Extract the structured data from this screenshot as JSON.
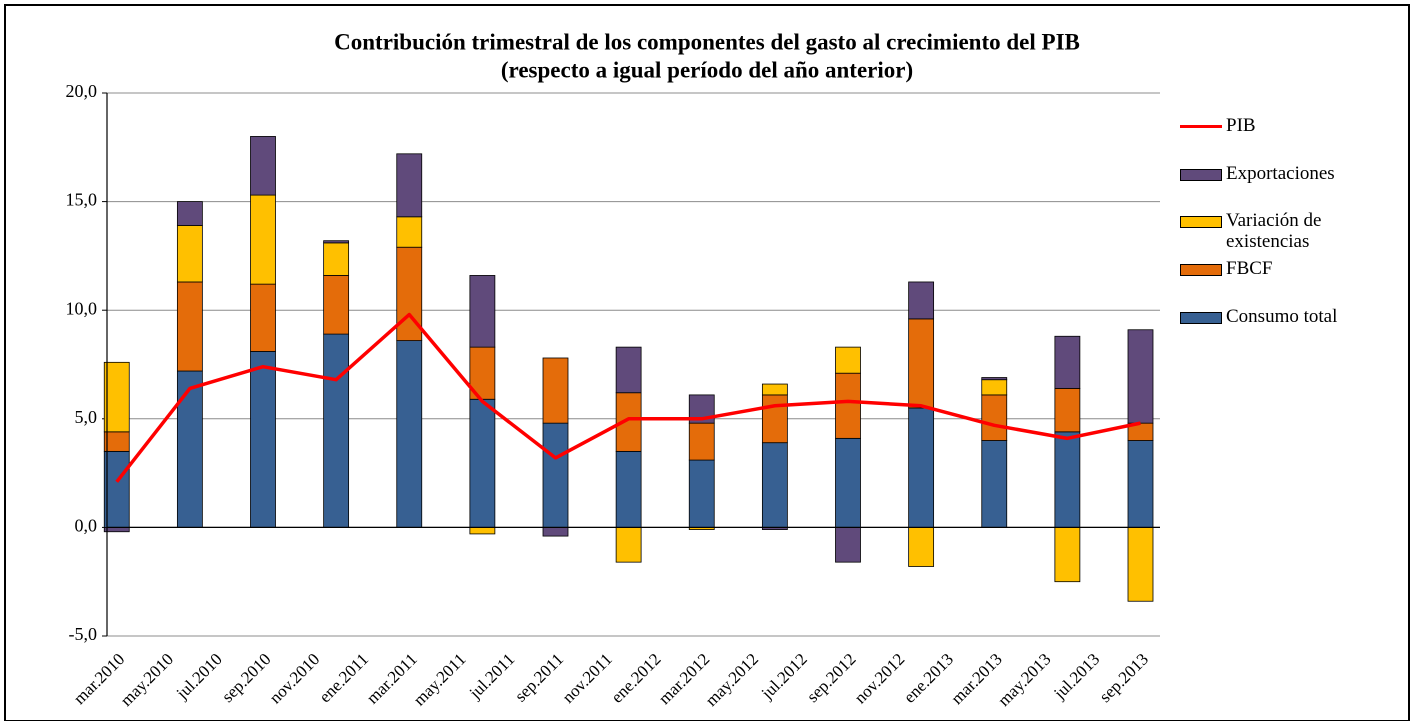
{
  "chart_data": {
    "type": "bar",
    "stacked": true,
    "title": "Contribución trimestral de los componentes del gasto al crecimiento del PIB",
    "subtitle": "(respecto a igual período del año anterior)",
    "x": [
      0,
      3,
      6,
      9,
      12,
      15,
      18,
      21,
      24,
      27,
      30,
      33,
      36,
      39,
      42
    ],
    "xlim": [
      -0.4,
      42.8
    ],
    "xticks": [
      {
        "value": 0,
        "label": "mar.2010"
      },
      {
        "value": 2,
        "label": "may.2010"
      },
      {
        "value": 4,
        "label": "jul.2010"
      },
      {
        "value": 6,
        "label": "sep.2010"
      },
      {
        "value": 8,
        "label": "nov.2010"
      },
      {
        "value": 10,
        "label": "ene.2011"
      },
      {
        "value": 12,
        "label": "mar.2011"
      },
      {
        "value": 14,
        "label": "may.2011"
      },
      {
        "value": 16,
        "label": "jul.2011"
      },
      {
        "value": 18,
        "label": "sep.2011"
      },
      {
        "value": 20,
        "label": "nov.2011"
      },
      {
        "value": 22,
        "label": "ene.2012"
      },
      {
        "value": 24,
        "label": "mar.2012"
      },
      {
        "value": 26,
        "label": "may.2012"
      },
      {
        "value": 28,
        "label": "jul.2012"
      },
      {
        "value": 30,
        "label": "sep.2012"
      },
      {
        "value": 32,
        "label": "nov.2012"
      },
      {
        "value": 34,
        "label": "ene.2013"
      },
      {
        "value": 36,
        "label": "mar.2013"
      },
      {
        "value": 38,
        "label": "may.2013"
      },
      {
        "value": 40,
        "label": "jul.2013"
      },
      {
        "value": 42,
        "label": "sep.2013"
      }
    ],
    "ylim": [
      -5,
      20
    ],
    "yticks": [
      {
        "value": -5,
        "label": "-5,0"
      },
      {
        "value": 0,
        "label": "0,0"
      },
      {
        "value": 5,
        "label": "5,0"
      },
      {
        "value": 10,
        "label": "10,0"
      },
      {
        "value": 15,
        "label": "15,0"
      },
      {
        "value": 20,
        "label": "20,0"
      }
    ],
    "grid": true,
    "legend": "right",
    "series": [
      {
        "name": "Consumo total",
        "color": "#376092",
        "values": [
          3.5,
          7.2,
          8.1,
          8.9,
          8.6,
          5.9,
          4.8,
          3.5,
          3.1,
          3.9,
          4.1,
          5.5,
          4.0,
          4.4,
          4.0
        ]
      },
      {
        "name": "FBCF",
        "color": "#e46c0a",
        "values": [
          0.9,
          4.1,
          3.1,
          2.7,
          4.3,
          2.4,
          3.0,
          2.7,
          1.7,
          2.2,
          3.0,
          4.1,
          2.1,
          2.0,
          0.8
        ]
      },
      {
        "name": "Variación de existencias",
        "color": "#ffc000",
        "values": [
          3.2,
          2.6,
          4.1,
          1.5,
          1.4,
          -0.3,
          0,
          -1.6,
          -0.1,
          0.5,
          1.2,
          -1.8,
          0.7,
          -2.5,
          -3.4
        ]
      },
      {
        "name": "Exportaciones",
        "color": "#604a7b",
        "values": [
          -0.2,
          1.1,
          2.7,
          0.1,
          2.9,
          3.3,
          -0.4,
          2.1,
          1.3,
          -0.1,
          -1.6,
          1.7,
          0.1,
          2.4,
          4.3
        ]
      },
      {
        "name": "PIB",
        "type": "line",
        "color": "#ff0000",
        "values": [
          2.1,
          6.4,
          7.4,
          6.8,
          9.8,
          5.8,
          3.2,
          5.0,
          5.0,
          5.6,
          5.8,
          5.6,
          4.7,
          4.1,
          4.8
        ]
      }
    ]
  }
}
